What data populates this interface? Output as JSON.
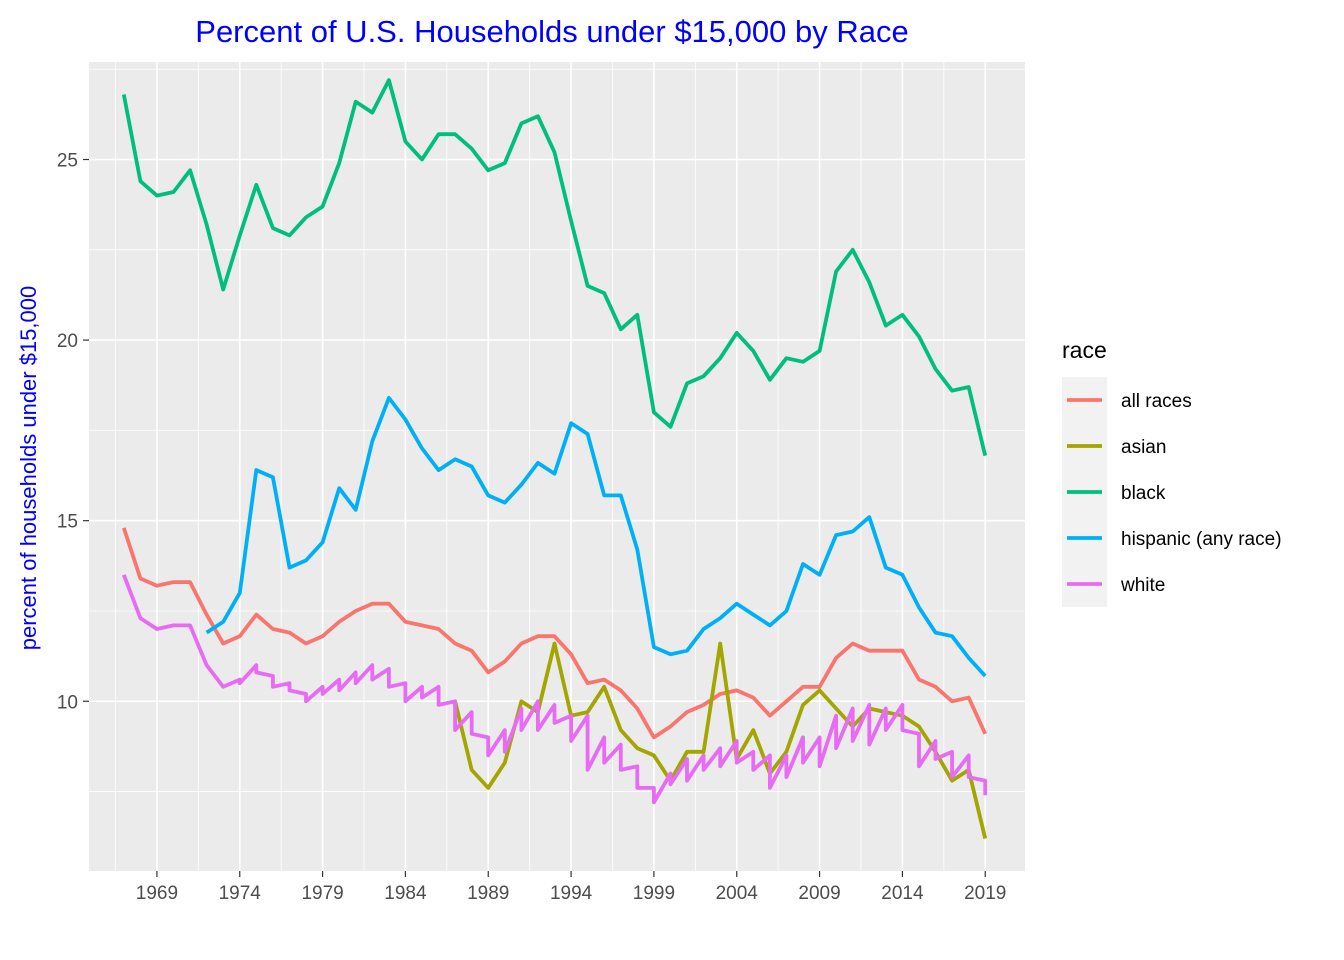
{
  "chart_data": {
    "type": "line",
    "title": "Percent of U.S. Households under $15,000 by Race",
    "ylabel": "percent of households under $15,000",
    "xlabel": "",
    "x_ticks": [
      "1969",
      "1974",
      "1979",
      "1984",
      "1989",
      "1994",
      "1999",
      "2004",
      "2009",
      "2014",
      "2019"
    ],
    "x_tick_values": [
      1969,
      1974,
      1979,
      1984,
      1989,
      1994,
      1999,
      2004,
      2009,
      2014,
      2019
    ],
    "y_ticks": [
      "10",
      "15",
      "20",
      "25"
    ],
    "y_tick_values": [
      10,
      15,
      20,
      25
    ],
    "xlim": [
      1964.9,
      2021.4
    ],
    "ylim": [
      5.3,
      27.7
    ],
    "grid": true,
    "legend_title": "race",
    "legend_position": "right",
    "title_color": "#0000ff",
    "ylabel_color": "#0000ff",
    "series": [
      {
        "name": "all races",
        "color": "#f8766d",
        "x": [
          1967,
          1968,
          1969,
          1970,
          1971,
          1972,
          1973,
          1974,
          1975,
          1976,
          1977,
          1978,
          1979,
          1980,
          1981,
          1982,
          1983,
          1984,
          1985,
          1986,
          1987,
          1988,
          1989,
          1990,
          1991,
          1992,
          1993,
          1994,
          1995,
          1996,
          1997,
          1998,
          1999,
          2000,
          2001,
          2002,
          2003,
          2004,
          2005,
          2006,
          2007,
          2008,
          2009,
          2010,
          2011,
          2012,
          2013,
          2014,
          2015,
          2016,
          2017,
          2018,
          2019
        ],
        "y": [
          14.8,
          13.4,
          13.2,
          13.3,
          13.3,
          12.4,
          11.6,
          11.8,
          12.4,
          12.0,
          11.9,
          11.6,
          11.8,
          12.2,
          12.5,
          12.7,
          12.7,
          12.2,
          12.1,
          12.0,
          11.6,
          11.4,
          10.8,
          11.1,
          11.6,
          11.8,
          11.8,
          11.3,
          10.5,
          10.6,
          10.3,
          9.8,
          9.0,
          9.3,
          9.7,
          9.9,
          10.2,
          10.3,
          10.1,
          9.6,
          10.0,
          10.4,
          10.4,
          11.2,
          11.6,
          11.4,
          11.4,
          11.4,
          10.6,
          10.4,
          10.0,
          10.1,
          9.1
        ]
      },
      {
        "name": "asian",
        "color": "#a3a500",
        "x": [
          1987,
          1988,
          1989,
          1990,
          1991,
          1992,
          1993,
          1994,
          1995,
          1996,
          1997,
          1998,
          1999,
          2000,
          2001,
          2002,
          2003,
          2004,
          2005,
          2006,
          2007,
          2008,
          2009,
          2010,
          2011,
          2012,
          2013,
          2014,
          2015,
          2016,
          2017,
          2018,
          2019
        ],
        "y": [
          10.0,
          8.1,
          7.6,
          8.3,
          10.0,
          9.7,
          11.6,
          9.6,
          9.7,
          10.4,
          9.2,
          8.7,
          8.5,
          7.8,
          8.6,
          8.6,
          11.6,
          8.4,
          9.2,
          8.0,
          8.6,
          9.9,
          10.3,
          9.8,
          9.3,
          9.8,
          9.7,
          9.6,
          9.3,
          8.6,
          7.8,
          8.1,
          6.2
        ]
      },
      {
        "name": "black",
        "color": "#00bf7d",
        "x": [
          1967,
          1968,
          1969,
          1970,
          1971,
          1972,
          1973,
          1974,
          1975,
          1976,
          1977,
          1978,
          1979,
          1980,
          1981,
          1982,
          1983,
          1984,
          1985,
          1986,
          1987,
          1988,
          1989,
          1990,
          1991,
          1992,
          1993,
          1994,
          1995,
          1996,
          1997,
          1998,
          1999,
          2000,
          2001,
          2002,
          2003,
          2004,
          2005,
          2006,
          2007,
          2008,
          2009,
          2010,
          2011,
          2012,
          2013,
          2014,
          2015,
          2016,
          2017,
          2018,
          2019
        ],
        "y": [
          26.8,
          24.4,
          24.0,
          24.1,
          24.7,
          23.2,
          21.4,
          22.9,
          24.3,
          23.1,
          22.9,
          23.4,
          23.7,
          24.9,
          26.6,
          26.3,
          27.2,
          25.5,
          25.0,
          25.7,
          25.7,
          25.3,
          24.7,
          24.9,
          26.0,
          26.2,
          25.2,
          23.3,
          21.5,
          21.3,
          20.3,
          20.7,
          18.0,
          17.6,
          18.8,
          19.0,
          19.5,
          20.2,
          19.7,
          18.9,
          19.5,
          19.4,
          19.7,
          21.9,
          22.5,
          21.6,
          20.4,
          20.7,
          20.1,
          19.2,
          18.6,
          18.7,
          16.8
        ]
      },
      {
        "name": "hispanic (any race)",
        "color": "#00b0f6",
        "x": [
          1972,
          1973,
          1974,
          1975,
          1976,
          1977,
          1978,
          1979,
          1980,
          1981,
          1982,
          1983,
          1984,
          1985,
          1986,
          1987,
          1988,
          1989,
          1990,
          1991,
          1992,
          1993,
          1994,
          1995,
          1996,
          1997,
          1998,
          1999,
          2000,
          2001,
          2002,
          2003,
          2004,
          2005,
          2006,
          2007,
          2008,
          2009,
          2010,
          2011,
          2012,
          2013,
          2014,
          2015,
          2016,
          2017,
          2018,
          2019
        ],
        "y": [
          11.9,
          12.2,
          13.0,
          16.4,
          16.2,
          13.7,
          13.9,
          14.4,
          15.9,
          15.3,
          17.2,
          18.4,
          17.8,
          17.0,
          16.4,
          16.7,
          16.5,
          15.7,
          15.5,
          16.0,
          16.6,
          16.3,
          17.7,
          17.4,
          15.7,
          15.7,
          14.2,
          11.5,
          11.3,
          11.4,
          12.0,
          12.3,
          12.7,
          12.4,
          12.1,
          12.5,
          13.8,
          13.5,
          14.6,
          14.7,
          15.1,
          13.7,
          13.5,
          12.6,
          11.9,
          11.8,
          11.2,
          10.7
        ]
      },
      {
        "name": "white",
        "color": "#e76bf3",
        "x": [
          1967,
          1968,
          1969,
          1970,
          1971,
          1972,
          1973,
          1974,
          1974,
          1975,
          1975,
          1976,
          1976,
          1977,
          1977,
          1978,
          1978,
          1979,
          1979,
          1980,
          1980,
          1981,
          1981,
          1982,
          1982,
          1983,
          1983,
          1984,
          1984,
          1985,
          1985,
          1986,
          1986,
          1987,
          1987,
          1988,
          1988,
          1989,
          1989,
          1990,
          1990,
          1991,
          1991,
          1992,
          1992,
          1993,
          1993,
          1994,
          1994,
          1995,
          1995,
          1996,
          1996,
          1997,
          1997,
          1998,
          1998,
          1999,
          1999,
          2000,
          2000,
          2001,
          2001,
          2002,
          2002,
          2003,
          2003,
          2004,
          2004,
          2005,
          2005,
          2006,
          2006,
          2007,
          2007,
          2008,
          2008,
          2009,
          2009,
          2010,
          2010,
          2011,
          2011,
          2012,
          2012,
          2013,
          2013,
          2014,
          2014,
          2015,
          2015,
          2016,
          2016,
          2017,
          2017,
          2018,
          2018,
          2019,
          2019
        ],
        "y": [
          13.5,
          12.3,
          12.0,
          12.1,
          12.1,
          11.0,
          10.4,
          10.6,
          10.5,
          11.0,
          10.8,
          10.7,
          10.4,
          10.5,
          10.3,
          10.2,
          10.0,
          10.4,
          10.2,
          10.6,
          10.3,
          10.8,
          10.5,
          11.0,
          10.6,
          10.9,
          10.4,
          10.5,
          10.0,
          10.4,
          10.1,
          10.4,
          9.9,
          10.0,
          9.2,
          9.7,
          9.1,
          9.0,
          8.5,
          9.2,
          8.6,
          9.8,
          9.2,
          10.0,
          9.2,
          9.9,
          9.4,
          9.6,
          8.9,
          9.6,
          8.1,
          9.0,
          8.3,
          8.8,
          8.1,
          8.2,
          7.6,
          7.6,
          7.2,
          8.0,
          7.7,
          8.4,
          7.8,
          8.5,
          8.1,
          8.7,
          8.2,
          8.9,
          8.3,
          8.6,
          8.1,
          8.5,
          7.6,
          8.5,
          7.9,
          9.0,
          8.3,
          9.0,
          8.2,
          9.6,
          8.7,
          9.8,
          8.9,
          9.9,
          8.8,
          9.8,
          9.2,
          9.9,
          9.2,
          9.1,
          8.2,
          8.9,
          8.4,
          8.6,
          7.9,
          8.5,
          7.9,
          7.8,
          7.4
        ]
      }
    ]
  }
}
